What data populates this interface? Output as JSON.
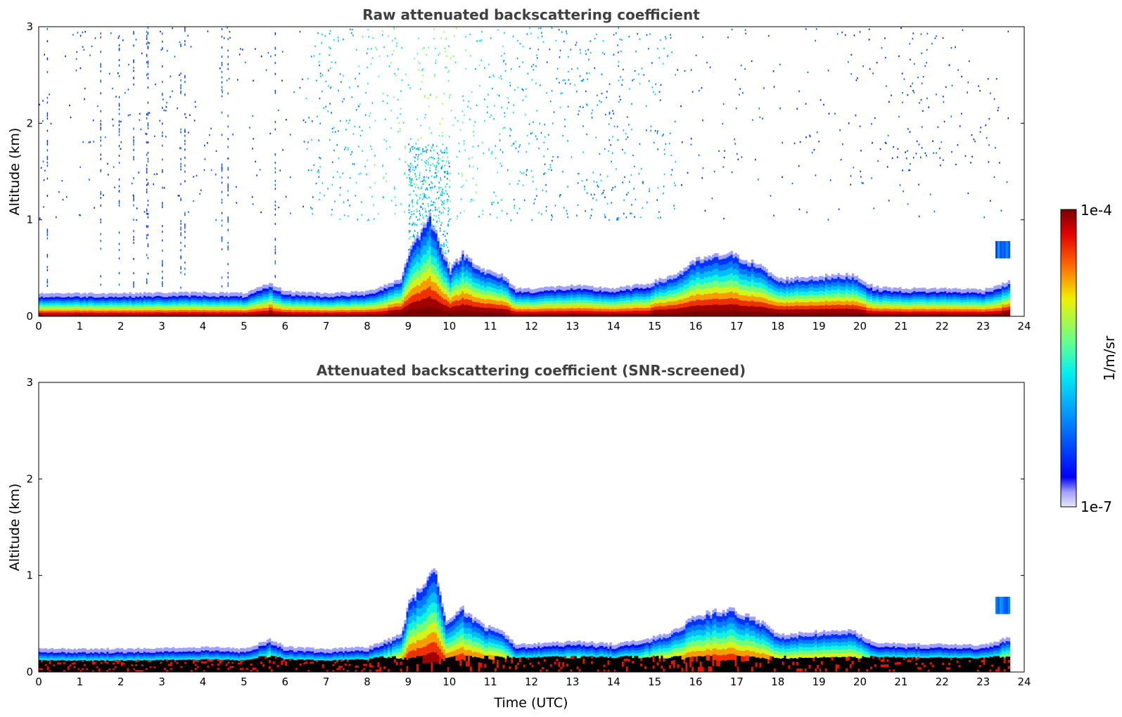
{
  "chart_data": [
    {
      "type": "heatmap",
      "title": "Raw attenuated backscattering coefficient",
      "xlabel": "",
      "ylabel": "Altitude (km)",
      "xlim": [
        0,
        24
      ],
      "ylim": [
        0,
        3
      ],
      "x_ticks": [
        "0",
        "1",
        "2",
        "3",
        "4",
        "5",
        "6",
        "7",
        "8",
        "9",
        "10",
        "11",
        "12",
        "13",
        "14",
        "15",
        "16",
        "17",
        "18",
        "19",
        "20",
        "21",
        "22",
        "23",
        "24"
      ],
      "y_ticks": [
        "0",
        "1",
        "2",
        "3"
      ],
      "grid": false,
      "colormap": "jet",
      "color_scale": "log",
      "boundary_layer_top_km": [
        [
          0,
          0.2
        ],
        [
          2,
          0.2
        ],
        [
          4,
          0.21
        ],
        [
          5,
          0.2
        ],
        [
          5.6,
          0.3
        ],
        [
          6,
          0.22
        ],
        [
          7,
          0.2
        ],
        [
          8,
          0.22
        ],
        [
          8.8,
          0.35
        ],
        [
          9,
          0.65
        ],
        [
          9.5,
          1.0
        ],
        [
          10,
          0.45
        ],
        [
          10.3,
          0.62
        ],
        [
          10.8,
          0.45
        ],
        [
          11.3,
          0.38
        ],
        [
          11.6,
          0.25
        ],
        [
          12,
          0.25
        ],
        [
          13,
          0.28
        ],
        [
          14,
          0.25
        ],
        [
          14.8,
          0.3
        ],
        [
          15.5,
          0.4
        ],
        [
          16,
          0.55
        ],
        [
          16.8,
          0.62
        ],
        [
          17.5,
          0.5
        ],
        [
          18,
          0.35
        ],
        [
          19,
          0.38
        ],
        [
          19.8,
          0.4
        ],
        [
          20.3,
          0.27
        ],
        [
          21,
          0.25
        ],
        [
          22,
          0.25
        ],
        [
          23,
          0.24
        ],
        [
          23.6,
          0.32
        ]
      ],
      "high_noise_region": {
        "time_utc": [
          6.5,
          15.5
        ],
        "altitude_km": [
          1.0,
          3.0
        ]
      },
      "elevated_layer": {
        "time_utc": [
          23.3,
          23.65
        ],
        "altitude_km": [
          0.6,
          0.78
        ]
      }
    },
    {
      "type": "heatmap",
      "title": "Attenuated backscattering coefficient (SNR-screened)",
      "xlabel": "Time (UTC)",
      "ylabel": "Altitude (km)",
      "xlim": [
        0,
        24
      ],
      "ylim": [
        0,
        3
      ],
      "x_ticks": [
        "0",
        "1",
        "2",
        "3",
        "4",
        "5",
        "6",
        "7",
        "8",
        "9",
        "10",
        "11",
        "12",
        "13",
        "14",
        "15",
        "16",
        "17",
        "18",
        "19",
        "20",
        "21",
        "22",
        "23",
        "24"
      ],
      "y_ticks": [
        "0",
        "1",
        "2",
        "3"
      ],
      "grid": false,
      "colormap": "jet",
      "color_scale": "log",
      "boundary_layer_top_km": [
        [
          0,
          0.2
        ],
        [
          2,
          0.2
        ],
        [
          4,
          0.22
        ],
        [
          5,
          0.2
        ],
        [
          5.6,
          0.3
        ],
        [
          6,
          0.22
        ],
        [
          7,
          0.2
        ],
        [
          8,
          0.22
        ],
        [
          8.8,
          0.35
        ],
        [
          9,
          0.7
        ],
        [
          9.4,
          0.9
        ],
        [
          9.6,
          1.08
        ],
        [
          9.9,
          0.5
        ],
        [
          10.3,
          0.62
        ],
        [
          10.8,
          0.45
        ],
        [
          11.3,
          0.38
        ],
        [
          11.6,
          0.25
        ],
        [
          12,
          0.25
        ],
        [
          13,
          0.28
        ],
        [
          14,
          0.25
        ],
        [
          14.8,
          0.3
        ],
        [
          15.5,
          0.4
        ],
        [
          16,
          0.55
        ],
        [
          16.8,
          0.62
        ],
        [
          17.5,
          0.5
        ],
        [
          18,
          0.35
        ],
        [
          19,
          0.38
        ],
        [
          19.8,
          0.4
        ],
        [
          20.3,
          0.27
        ],
        [
          21,
          0.25
        ],
        [
          22,
          0.25
        ],
        [
          23,
          0.24
        ],
        [
          23.6,
          0.32
        ]
      ],
      "screened_near_ground_color": "#000000",
      "elevated_layer": {
        "time_utc": [
          23.3,
          23.65
        ],
        "altitude_km": [
          0.6,
          0.78
        ]
      }
    }
  ],
  "colorbar": {
    "label": "1/m/sr",
    "max_label": "1e-4",
    "min_label": "1e-7",
    "vmin": 1e-07,
    "vmax": 0.0001
  }
}
